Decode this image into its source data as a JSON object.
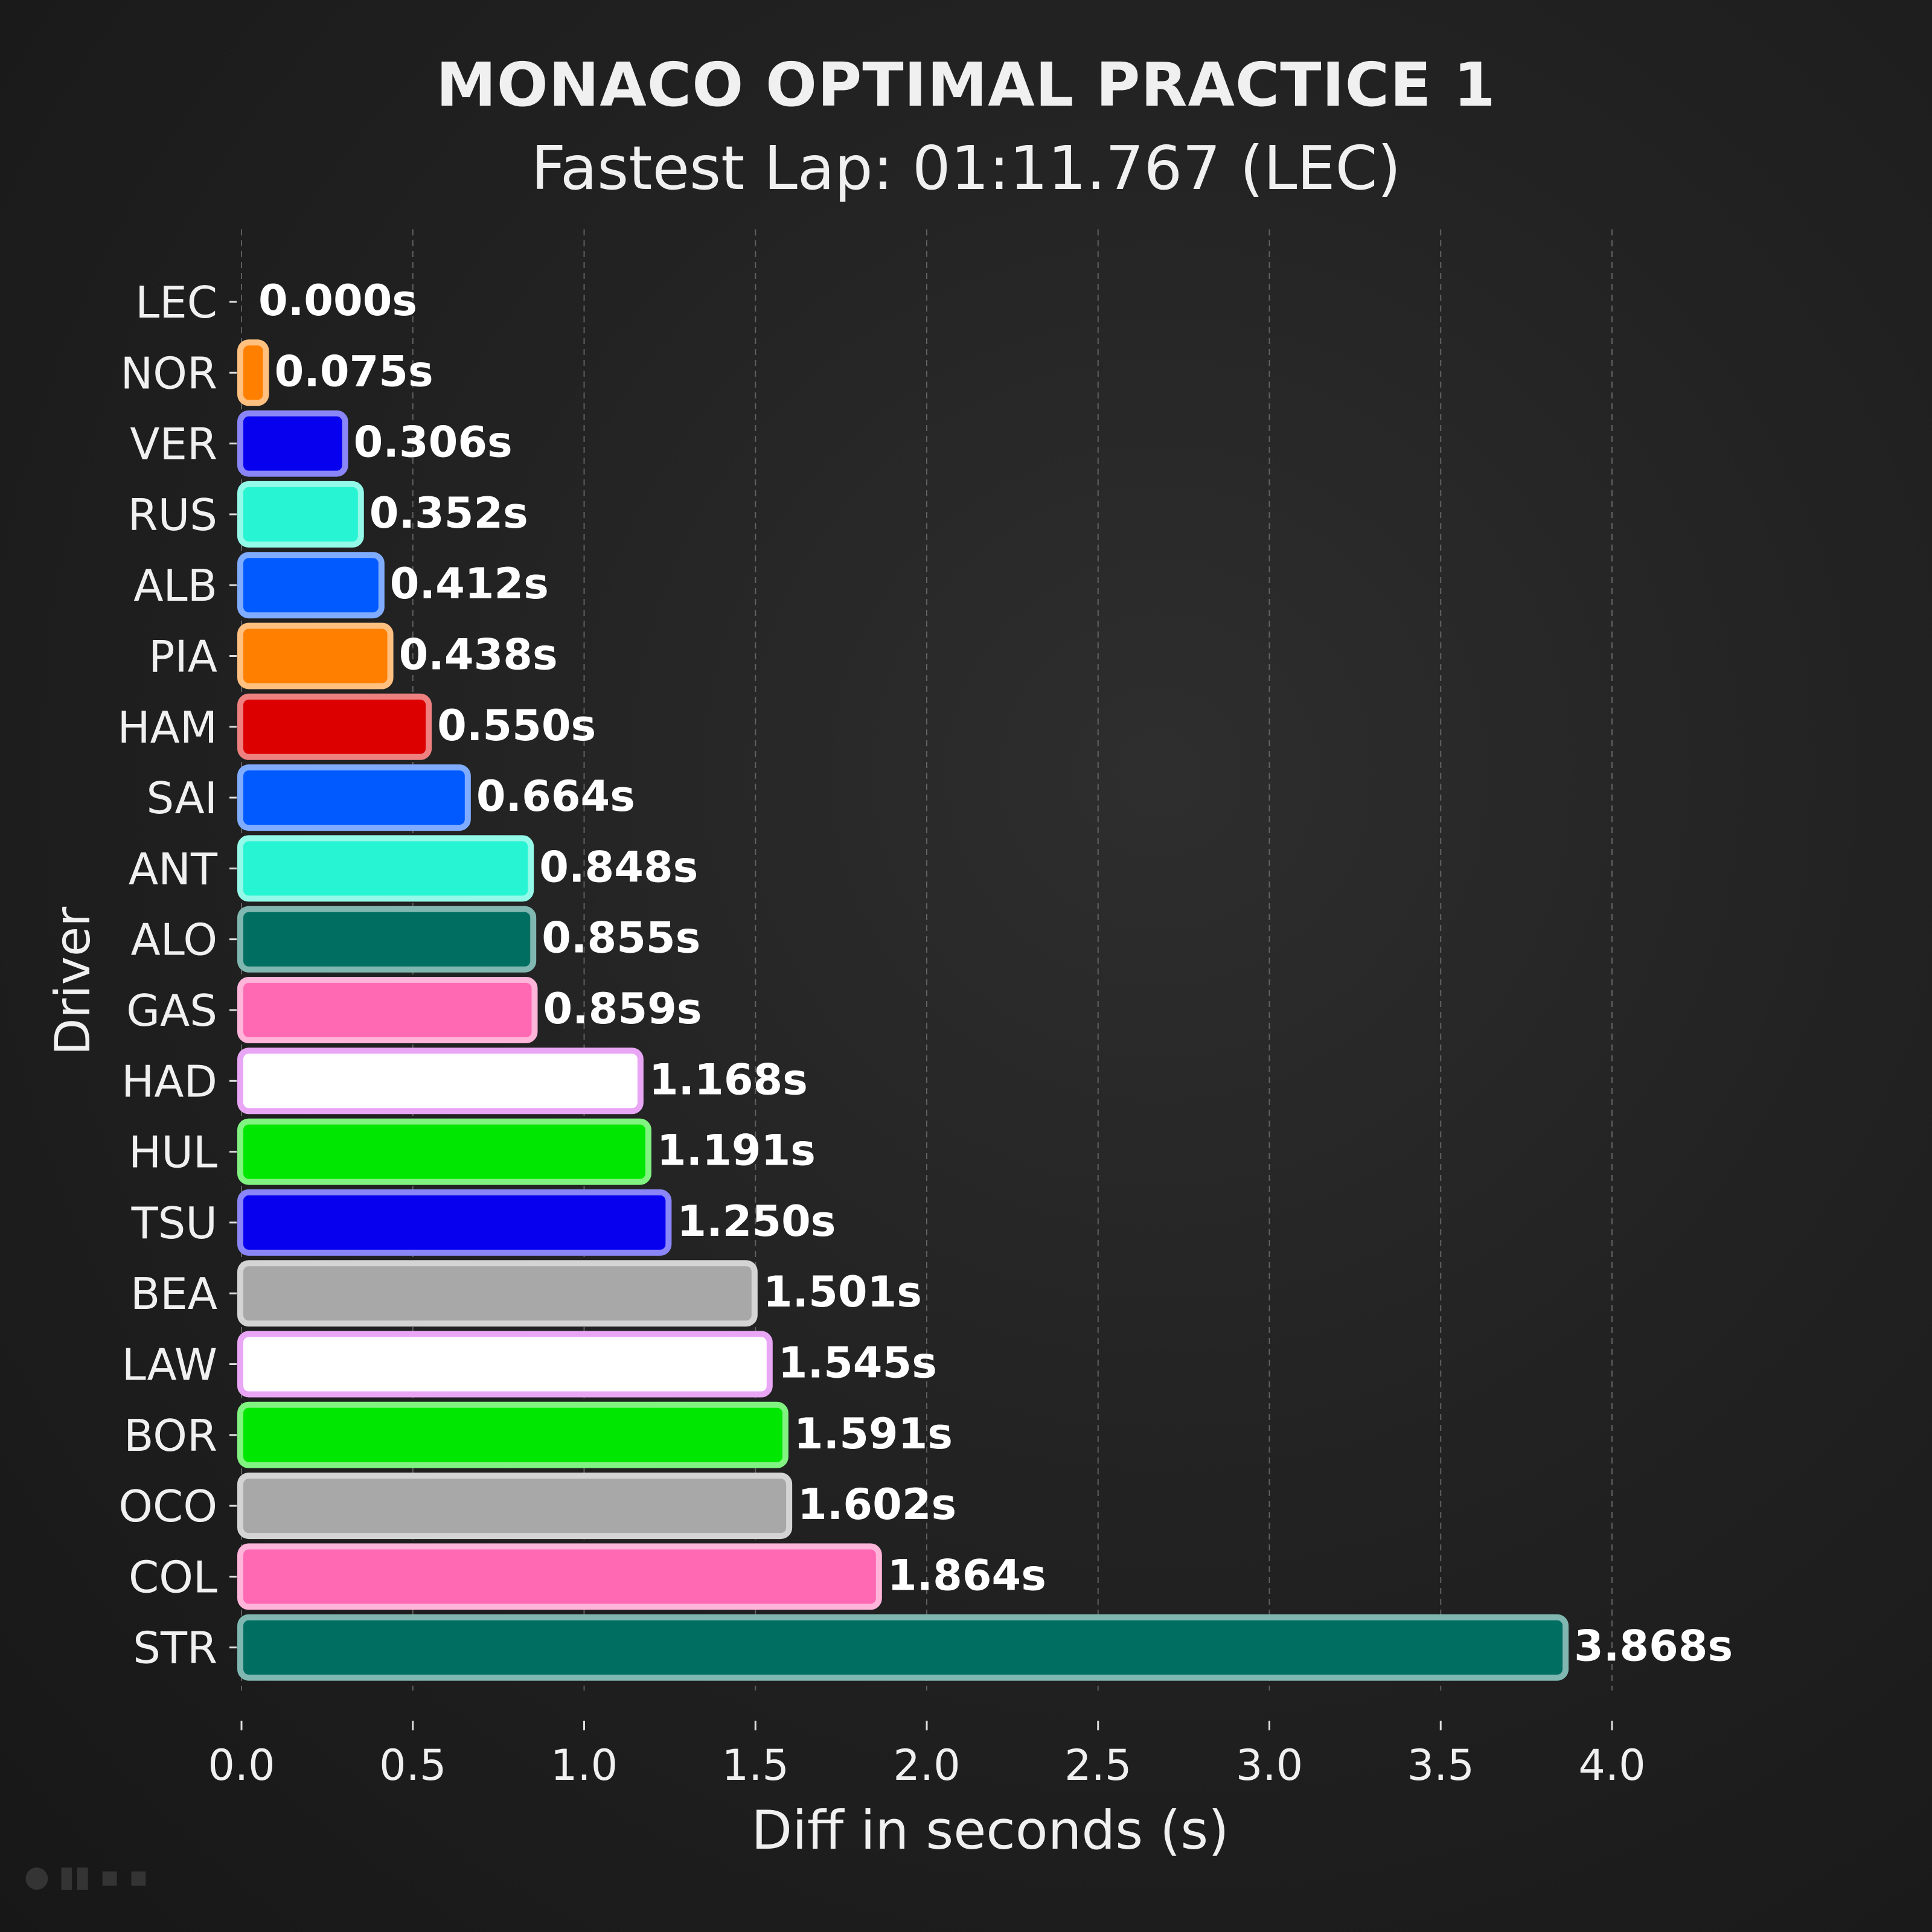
{
  "chart_data": {
    "type": "bar",
    "orientation": "horizontal",
    "title": "MONACO OPTIMAL PRACTICE 1",
    "subtitle": "Fastest Lap: 01:11.767 (LEC)",
    "xlabel": "Diff in seconds (s)",
    "ylabel": "Driver",
    "xlim": [
      0,
      4.0
    ],
    "xticks": [
      "0.0",
      "0.5",
      "1.0",
      "1.5",
      "2.0",
      "2.5",
      "3.0",
      "3.5",
      "4.0"
    ],
    "grid": "vertical dashed",
    "categories": [
      "LEC",
      "NOR",
      "VER",
      "RUS",
      "ALB",
      "PIA",
      "HAM",
      "SAI",
      "ANT",
      "ALO",
      "GAS",
      "HAD",
      "HUL",
      "TSU",
      "BEA",
      "LAW",
      "BOR",
      "OCO",
      "COL",
      "STR"
    ],
    "values": [
      0.0,
      0.075,
      0.306,
      0.352,
      0.412,
      0.438,
      0.55,
      0.664,
      0.848,
      0.855,
      0.859,
      1.168,
      1.191,
      1.25,
      1.501,
      1.545,
      1.591,
      1.602,
      1.864,
      3.868
    ],
    "value_labels": [
      "0.000s",
      "0.075s",
      "0.306s",
      "0.352s",
      "0.412s",
      "0.438s",
      "0.550s",
      "0.664s",
      "0.848s",
      "0.855s",
      "0.859s",
      "1.168s",
      "1.191s",
      "1.250s",
      "1.501s",
      "1.545s",
      "1.591s",
      "1.602s",
      "1.864s",
      "3.868s"
    ],
    "colors": [
      "#dc0000",
      "#ff8000",
      "#0600ef",
      "#27f4d2",
      "#005aff",
      "#ff8000",
      "#dc0000",
      "#005aff",
      "#27f4d2",
      "#006f62",
      "#ff69b4",
      "#ffffff",
      "#00e701",
      "#0600ef",
      "#a8a8a8",
      "#ffffff",
      "#00e701",
      "#a8a8a8",
      "#ff69b4",
      "#006f62"
    ],
    "edge_colors": [
      "#f08080",
      "#ffc080",
      "#8a86f7",
      "#93f9e8",
      "#80acff",
      "#ffc080",
      "#ee8080",
      "#80acff",
      "#93f9e8",
      "#80b7b0",
      "#ffb4d9",
      "#e9a6f5",
      "#80f380",
      "#8a86f7",
      "#d4d4d4",
      "#e9a6f5",
      "#80f380",
      "#d4d4d4",
      "#ffb4d9",
      "#80b7b0"
    ]
  }
}
